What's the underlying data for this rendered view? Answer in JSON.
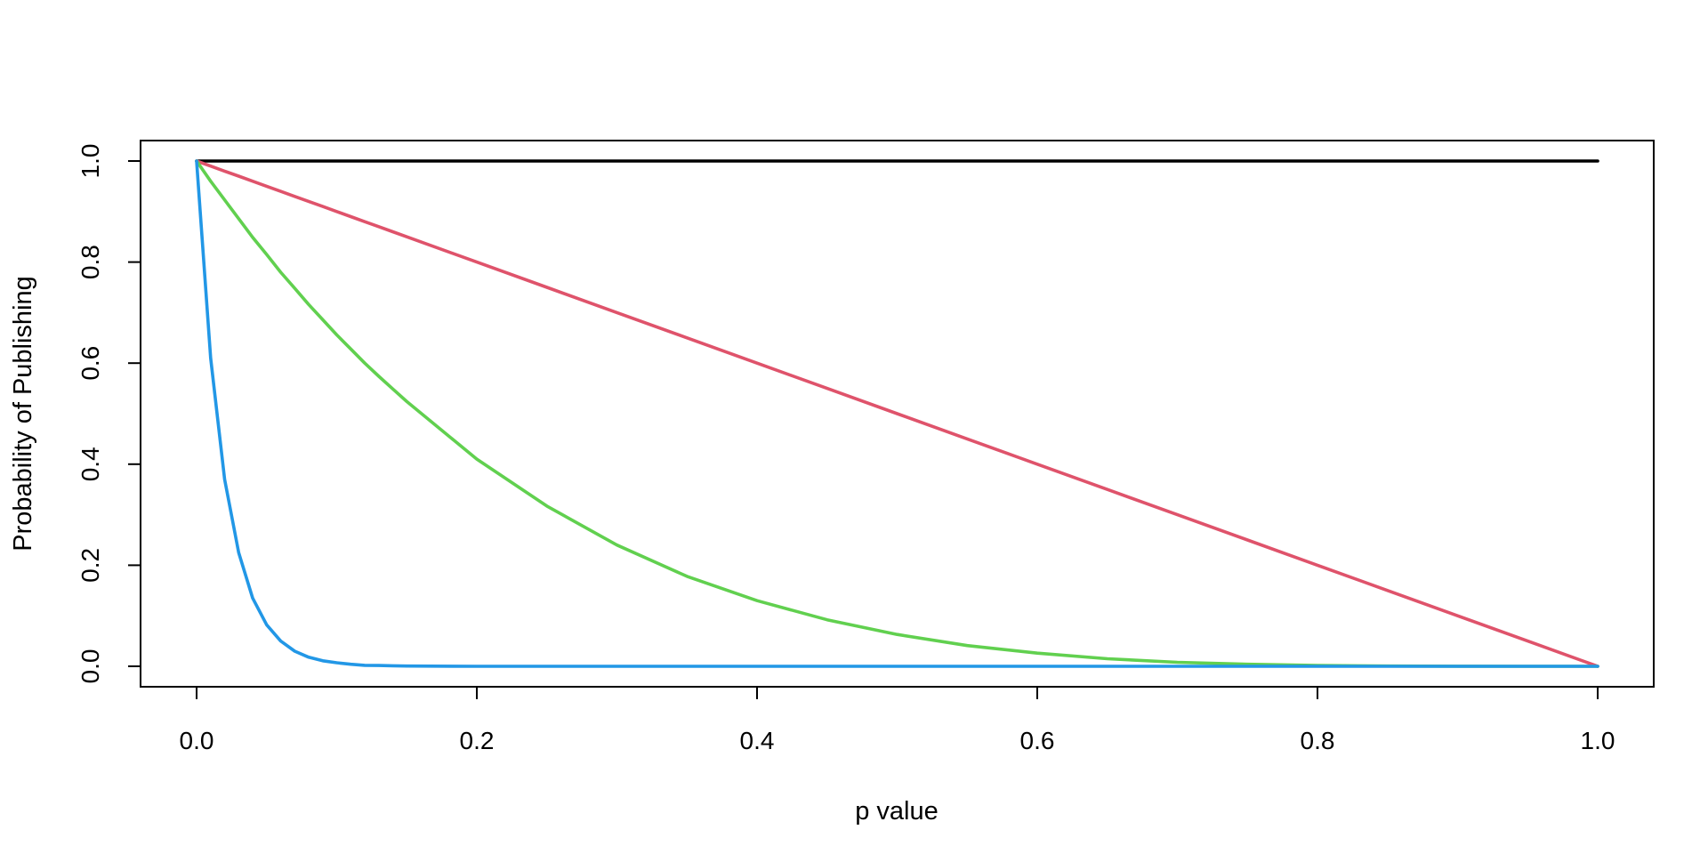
{
  "chart_data": {
    "type": "line",
    "title": "",
    "xlabel": "p value",
    "ylabel": "Probability of Publishing",
    "xlim": [
      0,
      1
    ],
    "ylim": [
      0,
      1
    ],
    "xticks": [
      0,
      0.2,
      0.4,
      0.6,
      0.8,
      1
    ],
    "xtick_labels": [
      "0.0",
      "0.2",
      "0.4",
      "0.6",
      "0.8",
      "1.0"
    ],
    "yticks": [
      0,
      0.2,
      0.4,
      0.6,
      0.8,
      1
    ],
    "ytick_labels": [
      "0.0",
      "0.2",
      "0.4",
      "0.6",
      "0.8",
      "1.0"
    ],
    "grid": false,
    "legend": "none",
    "x": [
      0,
      0.01,
      0.02,
      0.03,
      0.04,
      0.05,
      0.06,
      0.07,
      0.08,
      0.09,
      0.1,
      0.11,
      0.12,
      0.13,
      0.14,
      0.15,
      0.2,
      0.25,
      0.3,
      0.35,
      0.4,
      0.45,
      0.5,
      0.55,
      0.6,
      0.65,
      0.7,
      0.75,
      0.8,
      0.85,
      0.9,
      0.95,
      1
    ],
    "series": [
      {
        "color": "#000000",
        "values": [
          1,
          1,
          1,
          1,
          1,
          1,
          1,
          1,
          1,
          1,
          1,
          1,
          1,
          1,
          1,
          1,
          1,
          1,
          1,
          1,
          1,
          1,
          1,
          1,
          1,
          1,
          1,
          1,
          1,
          1,
          1,
          1,
          1
        ]
      },
      {
        "color": "#DF536B",
        "values": [
          1,
          0.99,
          0.98,
          0.97,
          0.96,
          0.95,
          0.94,
          0.93,
          0.92,
          0.91,
          0.9,
          0.89,
          0.88,
          0.87,
          0.86,
          0.85,
          0.8,
          0.75,
          0.7,
          0.65,
          0.6,
          0.55,
          0.5,
          0.45,
          0.4,
          0.35,
          0.3,
          0.25,
          0.2,
          0.15,
          0.1,
          0.05,
          0
        ]
      },
      {
        "color": "#61D04F",
        "values": [
          1,
          0.96,
          0.923,
          0.886,
          0.849,
          0.815,
          0.78,
          0.748,
          0.716,
          0.686,
          0.656,
          0.628,
          0.6,
          0.574,
          0.549,
          0.524,
          0.41,
          0.317,
          0.24,
          0.178,
          0.13,
          0.092,
          0.063,
          0.041,
          0.026,
          0.015,
          0.008,
          0.004,
          0.0016,
          0.0005,
          0.0001,
          0,
          0
        ]
      },
      {
        "color": "#2297E6",
        "values": [
          1,
          0.61,
          0.37,
          0.225,
          0.135,
          0.082,
          0.05,
          0.03,
          0.018,
          0.011,
          0.007,
          0.004,
          0.002,
          0.0015,
          0.001,
          0.0005,
          0,
          0,
          0,
          0,
          0,
          0,
          0,
          0,
          0,
          0,
          0,
          0,
          0,
          0,
          0,
          0,
          0
        ]
      }
    ]
  }
}
